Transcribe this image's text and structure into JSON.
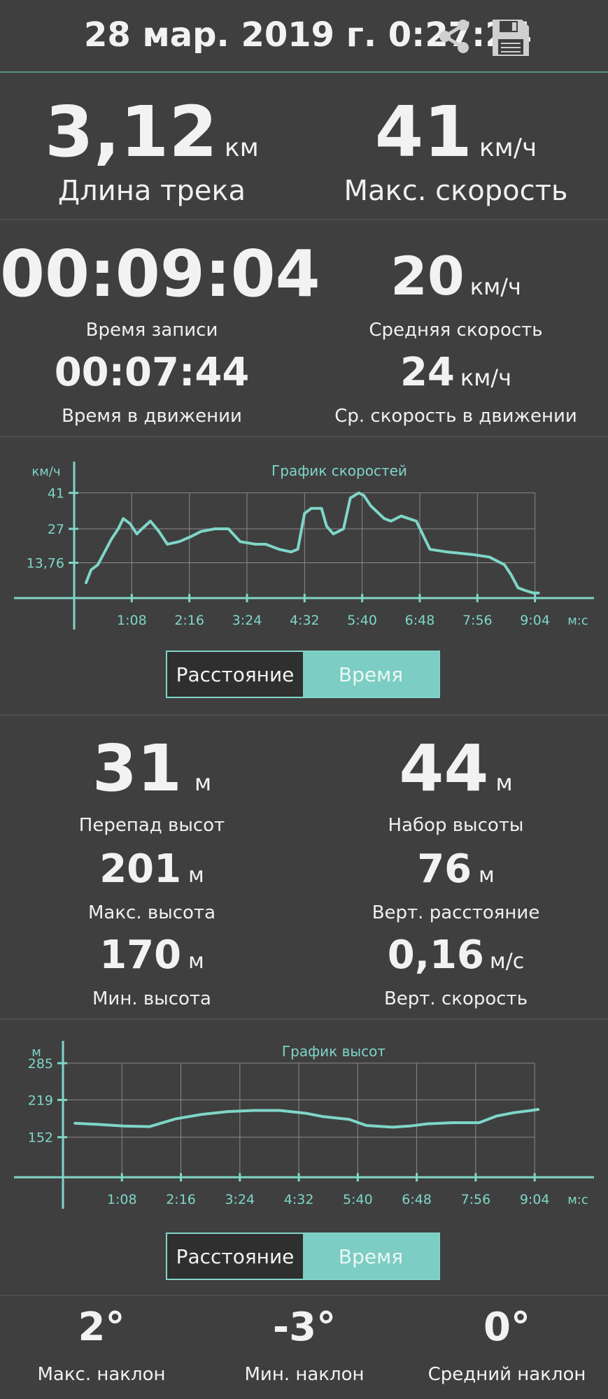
{
  "header": {
    "title": "28 мар. 2019 г. 0:27:24",
    "share_icon": "share-icon",
    "save_icon": "floppy-disk-icon"
  },
  "accent_color": "#7fd6c8",
  "track_stats": {
    "track_length": {
      "value": "3,12",
      "unit": "км",
      "label": "Длина трека"
    },
    "max_speed": {
      "value": "41",
      "unit": "км/ч",
      "label": "Макс. скорость"
    },
    "record_time": {
      "value": "00:09:04",
      "label": "Время записи"
    },
    "avg_speed": {
      "value": "20",
      "unit": "км/ч",
      "label": "Средняя скорость"
    },
    "moving_time": {
      "value": "00:07:44",
      "label": "Время в движении"
    },
    "avg_moving_speed": {
      "value": "24",
      "unit": "км/ч",
      "label": "Ср. скорость в движении"
    }
  },
  "speed_chart_widget": {
    "toggle": {
      "distance": "Расстояние",
      "time": "Время",
      "selected": "Время"
    }
  },
  "elevation_stats": {
    "elevation_diff": {
      "value": "31",
      "unit": "м",
      "label": "Перепад высот"
    },
    "elevation_gain": {
      "value": "44",
      "unit": "м",
      "label": "Набор высоты"
    },
    "max_elevation": {
      "value": "201",
      "unit": "м",
      "label": "Макс. высота"
    },
    "vertical_distance": {
      "value": "76",
      "unit": "м",
      "label": "Верт. расстояние"
    },
    "min_elevation": {
      "value": "170",
      "unit": "м",
      "label": "Мин. высота"
    },
    "vertical_speed": {
      "value": "0,16",
      "unit": "м/с",
      "label": "Верт. скорость"
    }
  },
  "elevation_chart_widget": {
    "toggle": {
      "distance": "Расстояние",
      "time": "Время",
      "selected": "Время"
    }
  },
  "slopes": {
    "max": {
      "value": "2°",
      "label": "Макс. наклон"
    },
    "min": {
      "value": "-3°",
      "label": "Мин. наклон"
    },
    "avg": {
      "value": "0°",
      "label": "Средний наклон"
    }
  },
  "chart_data": [
    {
      "type": "line",
      "title": "График скоростей",
      "ylabel": "км/ч",
      "xlabel": "м:с",
      "y_ticks": [
        "13,76",
        "27",
        "41"
      ],
      "y_tick_values": [
        13.76,
        27,
        41
      ],
      "ylim": [
        0,
        45
      ],
      "x_ticks": [
        "1:08",
        "2:16",
        "3:24",
        "4:32",
        "5:40",
        "6:48",
        "7:56",
        "9:04"
      ],
      "x_tick_values": [
        68,
        136,
        204,
        272,
        340,
        408,
        476,
        544
      ],
      "xlim": [
        0,
        560
      ],
      "grid": true,
      "series": [
        {
          "x": [
            14,
            20,
            28,
            36,
            44,
            52,
            58,
            66,
            74,
            80,
            90,
            100,
            110,
            124,
            138,
            150,
            166,
            182,
            196,
            214,
            226,
            242,
            256,
            264,
            272,
            280,
            292,
            298,
            306,
            318,
            326,
            336,
            342,
            350,
            366,
            374,
            386,
            404,
            420,
            440,
            470,
            490,
            508,
            516,
            524,
            532,
            542,
            548
          ],
          "y": [
            6,
            11,
            13,
            18,
            23,
            27,
            31,
            29,
            25,
            27,
            30,
            26,
            21,
            22,
            24,
            26,
            27,
            27,
            22,
            21,
            21,
            19,
            18,
            19,
            33,
            35,
            35,
            28,
            25,
            27,
            39,
            41,
            40,
            36,
            31,
            30,
            32,
            30,
            19,
            18,
            17,
            16,
            13,
            9,
            4,
            3,
            2,
            2
          ]
        }
      ]
    },
    {
      "type": "line",
      "title": "График высот",
      "ylabel": "м",
      "xlabel": "м:с",
      "y_ticks": [
        "152",
        "219",
        "285"
      ],
      "y_tick_values": [
        152,
        219,
        285
      ],
      "ylim": [
        80,
        300
      ],
      "x_ticks": [
        "1:08",
        "2:16",
        "3:24",
        "4:32",
        "5:40",
        "6:48",
        "7:56",
        "9:04"
      ],
      "x_tick_values": [
        68,
        136,
        204,
        272,
        340,
        408,
        476,
        544
      ],
      "xlim": [
        0,
        560
      ],
      "grid": true,
      "series": [
        {
          "x": [
            14,
            40,
            70,
            100,
            130,
            160,
            190,
            220,
            250,
            280,
            300,
            330,
            350,
            380,
            400,
            420,
            450,
            480,
            500,
            520,
            540,
            548
          ],
          "y": [
            177,
            175,
            172,
            171,
            185,
            193,
            198,
            200,
            200,
            195,
            189,
            184,
            173,
            170,
            172,
            176,
            178,
            178,
            190,
            196,
            200,
            202
          ]
        }
      ]
    }
  ]
}
